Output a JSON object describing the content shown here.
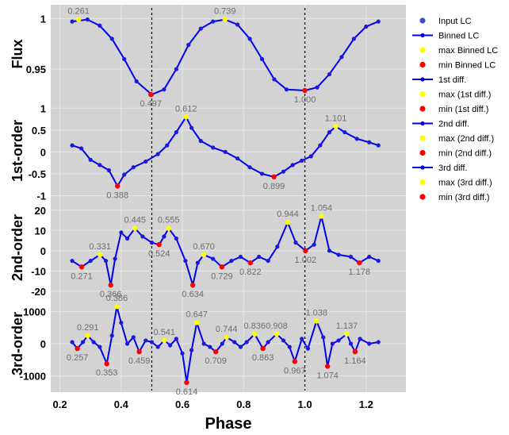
{
  "chart_data": {
    "type": "line",
    "xlabel": "Phase",
    "xlim": [
      0.17,
      1.33
    ],
    "xticks": [
      "0.2",
      "0.4",
      "0.6",
      "0.8",
      "1.0",
      "1.2"
    ],
    "vlines": [
      0.5,
      1.0
    ],
    "grid": true,
    "legend_position": "right",
    "legend": [
      {
        "label": "Input LC",
        "kind": "dot",
        "color": "#3a4bd6"
      },
      {
        "label": "Binned LC",
        "kind": "line",
        "color": "#0000ee"
      },
      {
        "label": "max  Binned LC",
        "kind": "dot",
        "color": "#ffff00"
      },
      {
        "label": "min  Binned LC",
        "kind": "dot",
        "color": "#ff0000"
      },
      {
        "label": "1st diff.",
        "kind": "line",
        "color": "#0000ee"
      },
      {
        "label": "max (1st diff.)",
        "kind": "dot",
        "color": "#ffff00"
      },
      {
        "label": "min (1st diff.)",
        "kind": "dot",
        "color": "#ff0000"
      },
      {
        "label": "2nd diff.",
        "kind": "line",
        "color": "#0000ee"
      },
      {
        "label": "max (2nd diff.)",
        "kind": "dot",
        "color": "#ffff00"
      },
      {
        "label": "min (2nd diff.)",
        "kind": "dot",
        "color": "#ff0000"
      },
      {
        "label": "3rd diff.",
        "kind": "line",
        "color": "#0000ee"
      },
      {
        "label": "max (3rd diff.)",
        "kind": "dot",
        "color": "#ffff00"
      },
      {
        "label": "min (3rd diff.)",
        "kind": "dot",
        "color": "#ff0000"
      }
    ],
    "panels": [
      {
        "ylabel": "Flux",
        "ylim": [
          0.918,
          1.012
        ],
        "yticks": [
          {
            "v": 1.0,
            "t": "1"
          },
          {
            "v": 0.95,
            "t": "0.95"
          }
        ],
        "series": [
          {
            "name": "Binned LC",
            "x": [
              0.24,
              0.29,
              0.33,
              0.37,
              0.41,
              0.45,
              0.5,
              0.54,
              0.58,
              0.62,
              0.66,
              0.7,
              0.739,
              0.78,
              0.82,
              0.86,
              0.9,
              0.94,
              1.0,
              1.04,
              1.08,
              1.12,
              1.16,
              1.2,
              1.24
            ],
            "y": [
              0.997,
              0.999,
              0.993,
              0.98,
              0.96,
              0.938,
              0.925,
              0.93,
              0.95,
              0.974,
              0.99,
              0.997,
              0.999,
              0.994,
              0.98,
              0.96,
              0.94,
              0.93,
              0.929,
              0.932,
              0.945,
              0.962,
              0.98,
              0.992,
              0.997
            ]
          }
        ],
        "max_points": [
          {
            "x": 0.261,
            "y": 0.999,
            "label": "0.261"
          },
          {
            "x": 0.739,
            "y": 0.999,
            "label": "0.739"
          }
        ],
        "min_points": [
          {
            "x": 0.497,
            "y": 0.925,
            "label": "0.497"
          },
          {
            "x": 1.0,
            "y": 0.929,
            "label": "1.000"
          }
        ]
      },
      {
        "ylabel": "1st-order",
        "ylim": [
          -1.1,
          1.15
        ],
        "yticks": [
          {
            "v": 1,
            "t": "1"
          },
          {
            "v": 0.5,
            "t": "0.5"
          },
          {
            "v": 0,
            "t": "0"
          },
          {
            "v": -0.5,
            "t": "-0.5"
          },
          {
            "v": -1,
            "t": "-1"
          }
        ],
        "series": [
          {
            "name": "1st diff.",
            "x": [
              0.24,
              0.27,
              0.3,
              0.33,
              0.36,
              0.388,
              0.41,
              0.44,
              0.48,
              0.52,
              0.55,
              0.58,
              0.612,
              0.63,
              0.66,
              0.7,
              0.74,
              0.78,
              0.82,
              0.86,
              0.899,
              0.93,
              0.96,
              0.99,
              1.02,
              1.05,
              1.08,
              1.101,
              1.13,
              1.17,
              1.21,
              1.24
            ],
            "y": [
              0.15,
              0.08,
              -0.18,
              -0.3,
              -0.42,
              -0.78,
              -0.52,
              -0.35,
              -0.22,
              -0.05,
              0.15,
              0.45,
              0.8,
              0.55,
              0.25,
              0.1,
              0.0,
              -0.15,
              -0.35,
              -0.5,
              -0.57,
              -0.45,
              -0.3,
              -0.2,
              -0.1,
              0.15,
              0.45,
              0.58,
              0.45,
              0.3,
              0.22,
              0.15
            ]
          }
        ],
        "max_points": [
          {
            "x": 0.612,
            "y": 0.8,
            "label": "0.612"
          },
          {
            "x": 1.101,
            "y": 0.58,
            "label": "1.101"
          }
        ],
        "min_points": [
          {
            "x": 0.388,
            "y": -0.78,
            "label": "0.388"
          },
          {
            "x": 0.899,
            "y": -0.57,
            "label": "0.899"
          }
        ]
      },
      {
        "ylabel": "2nd-order",
        "ylim": [
          -22,
          25
        ],
        "yticks": [
          {
            "v": 20,
            "t": "20"
          },
          {
            "v": 10,
            "t": "10"
          },
          {
            "v": 0,
            "t": "0"
          },
          {
            "v": -10,
            "t": "-10"
          },
          {
            "v": -20,
            "t": "-20"
          }
        ],
        "series": [
          {
            "name": "2nd diff.",
            "x": [
              0.24,
              0.271,
              0.3,
              0.331,
              0.35,
              0.366,
              0.38,
              0.4,
              0.42,
              0.445,
              0.47,
              0.5,
              0.524,
              0.54,
              0.555,
              0.58,
              0.61,
              0.634,
              0.65,
              0.67,
              0.7,
              0.729,
              0.76,
              0.79,
              0.822,
              0.85,
              0.88,
              0.91,
              0.944,
              0.97,
              1.002,
              1.03,
              1.054,
              1.08,
              1.11,
              1.15,
              1.178,
              1.21,
              1.24
            ],
            "y": [
              -5,
              -8,
              -5,
              -2,
              -5,
              -17,
              -4,
              9,
              6,
              11,
              7,
              4,
              3,
              7,
              11,
              6,
              -5,
              -17,
              -6,
              -2,
              -4,
              -8,
              -5,
              -3,
              -6,
              -3,
              -5,
              2,
              14,
              4,
              0,
              3,
              17,
              0,
              -2,
              -3,
              -6,
              -3,
              -5
            ]
          }
        ],
        "max_points": [
          {
            "x": 0.331,
            "y": -2,
            "label": "0.331"
          },
          {
            "x": 0.445,
            "y": 11,
            "label": "0.445"
          },
          {
            "x": 0.555,
            "y": 11,
            "label": "0.555"
          },
          {
            "x": 0.67,
            "y": -2,
            "label": "0.670"
          },
          {
            "x": 0.944,
            "y": 14,
            "label": "0.944"
          },
          {
            "x": 1.054,
            "y": 17,
            "label": "1.054"
          }
        ],
        "min_points": [
          {
            "x": 0.271,
            "y": -8,
            "label": "0.271"
          },
          {
            "x": 0.366,
            "y": -17,
            "label": "0.366"
          },
          {
            "x": 0.524,
            "y": 3,
            "label": "0.524"
          },
          {
            "x": 0.634,
            "y": -17,
            "label": "0.634"
          },
          {
            "x": 0.729,
            "y": -8,
            "label": "0.729"
          },
          {
            "x": 0.822,
            "y": -6,
            "label": "0.822"
          },
          {
            "x": 1.002,
            "y": 0,
            "label": "1.002"
          },
          {
            "x": 1.178,
            "y": -6,
            "label": "1.178"
          }
        ]
      },
      {
        "ylabel": "3rd-order",
        "ylim": [
          -1500,
          1500
        ],
        "yticks": [
          {
            "v": 1000,
            "t": "1000"
          },
          {
            "v": 0,
            "t": "0"
          },
          {
            "v": -1000,
            "t": "-1000"
          }
        ],
        "series": [
          {
            "name": "3rd diff.",
            "x": [
              0.24,
              0.257,
              0.275,
              0.291,
              0.31,
              0.33,
              0.353,
              0.37,
              0.386,
              0.4,
              0.42,
              0.44,
              0.459,
              0.48,
              0.5,
              0.52,
              0.541,
              0.56,
              0.58,
              0.6,
              0.614,
              0.63,
              0.647,
              0.67,
              0.69,
              0.709,
              0.73,
              0.744,
              0.77,
              0.79,
              0.81,
              0.836,
              0.863,
              0.88,
              0.908,
              0.93,
              0.95,
              0.967,
              0.99,
              1.01,
              1.038,
              1.06,
              1.074,
              1.09,
              1.11,
              1.137,
              1.15,
              1.164,
              1.18,
              1.21,
              1.24
            ],
            "y": [
              50,
              -150,
              50,
              250,
              50,
              -100,
              -620,
              250,
              1150,
              650,
              0,
              200,
              -250,
              100,
              50,
              -100,
              100,
              -50,
              150,
              -300,
              -1200,
              -200,
              650,
              0,
              -100,
              -250,
              0,
              200,
              50,
              -100,
              50,
              300,
              -150,
              50,
              300,
              100,
              -100,
              -550,
              150,
              -150,
              700,
              200,
              -700,
              0,
              100,
              300,
              0,
              -250,
              150,
              0,
              50
            ]
          }
        ],
        "max_points": [
          {
            "x": 0.291,
            "y": 250,
            "label": "0.291"
          },
          {
            "x": 0.386,
            "y": 1150,
            "label": "0.386"
          },
          {
            "x": 0.541,
            "y": 100,
            "label": "0.541"
          },
          {
            "x": 0.647,
            "y": 650,
            "label": "0.647"
          },
          {
            "x": 0.744,
            "y": 200,
            "label": "0.744"
          },
          {
            "x": 0.836,
            "y": 300,
            "label": "0.836"
          },
          {
            "x": 0.908,
            "y": 300,
            "label": "0.908"
          },
          {
            "x": 1.038,
            "y": 700,
            "label": "1.038"
          },
          {
            "x": 1.137,
            "y": 300,
            "label": "1.137"
          }
        ],
        "min_points": [
          {
            "x": 0.257,
            "y": -150,
            "label": "0.257"
          },
          {
            "x": 0.353,
            "y": -620,
            "label": "0.353"
          },
          {
            "x": 0.459,
            "y": -250,
            "label": "0.459"
          },
          {
            "x": 0.614,
            "y": -1200,
            "label": "0.614"
          },
          {
            "x": 0.709,
            "y": -250,
            "label": "0.709"
          },
          {
            "x": 0.863,
            "y": -150,
            "label": "0.863"
          },
          {
            "x": 0.967,
            "y": -550,
            "label": "0.967"
          },
          {
            "x": 1.074,
            "y": -700,
            "label": "1.074"
          },
          {
            "x": 1.164,
            "y": -250,
            "label": "1.164"
          }
        ]
      }
    ]
  }
}
